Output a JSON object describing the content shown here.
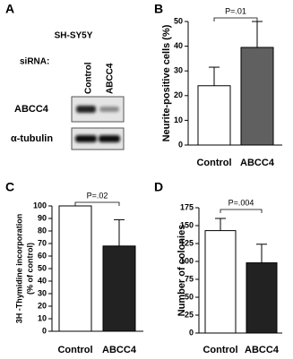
{
  "panel_a": {
    "label": "A",
    "cell_line": "SH-SY5Y",
    "sirna_label": "siRNA:",
    "lanes": [
      "Control",
      "ABCC4"
    ],
    "blots": [
      "ABCC4",
      "α-tubulin"
    ]
  },
  "chart_data": [
    {
      "type": "bar",
      "panel_label": "B",
      "ylabel": [
        "Neurite-positive cells (%)"
      ],
      "categories": [
        "Control",
        "ABCC4"
      ],
      "values": [
        24,
        39.5
      ],
      "errors": [
        7.5,
        10.5
      ],
      "colors": [
        "#ffffff",
        "#606060"
      ],
      "ylim": [
        0,
        50
      ],
      "yticks": [
        0,
        10,
        20,
        30,
        40,
        50
      ],
      "annotation": "P=.01"
    },
    {
      "type": "bar",
      "panel_label": "C",
      "ylabel": [
        "3H -Thymidine incorporation",
        "(% of control)"
      ],
      "categories": [
        "Control",
        "ABCC4"
      ],
      "values": [
        100,
        68
      ],
      "errors": [
        0,
        21
      ],
      "colors": [
        "#ffffff",
        "#222222"
      ],
      "ylim": [
        0,
        100
      ],
      "yticks": [
        0,
        10,
        20,
        30,
        40,
        50,
        60,
        70,
        80,
        90,
        100
      ],
      "annotation": "P=.02"
    },
    {
      "type": "bar",
      "panel_label": "D",
      "ylabel": [
        "Number of colonies"
      ],
      "categories": [
        "Control",
        "ABCC4"
      ],
      "values": [
        143,
        98
      ],
      "errors": [
        17,
        26
      ],
      "colors": [
        "#ffffff",
        "#222222"
      ],
      "ylim": [
        0,
        175
      ],
      "yticks": [
        0,
        25,
        50,
        75,
        100,
        125,
        150,
        175
      ],
      "annotation": "P=.004"
    }
  ]
}
